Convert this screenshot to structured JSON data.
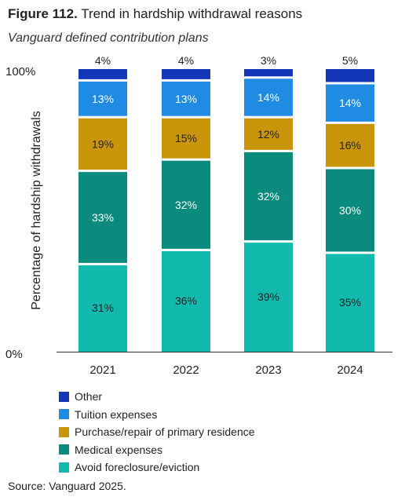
{
  "title": {
    "bold": "Figure 112.",
    "rest": " Trend in hardship withdrawal reasons"
  },
  "subtitle": "Vanguard defined contribution plans",
  "source": "Source: Vanguard 2025.",
  "chart_data": {
    "type": "bar",
    "stacked": true,
    "categories": [
      "2021",
      "2022",
      "2023",
      "2024"
    ],
    "ylabel": "Percentage of hardship withdrawals",
    "ylim": [
      0,
      100
    ],
    "y_tick_labels": [
      "0%",
      "100%"
    ],
    "series": [
      {
        "name": "Avoid foreclosure/eviction",
        "color": "#12b9ad",
        "label_color": "#222222",
        "values": [
          31,
          36,
          39,
          35
        ]
      },
      {
        "name": "Medical expenses",
        "color": "#0b8a7e",
        "label_color": "#ffffff",
        "values": [
          33,
          32,
          32,
          30
        ]
      },
      {
        "name": "Purchase/repair of primary residence",
        "color": "#c9950a",
        "label_color": "#222222",
        "values": [
          19,
          15,
          12,
          16
        ]
      },
      {
        "name": "Tuition expenses",
        "color": "#1f8be3",
        "label_color": "#ffffff",
        "values": [
          13,
          13,
          14,
          14
        ]
      },
      {
        "name": "Other",
        "color": "#1437b8",
        "label_color": "#222222",
        "values": [
          4,
          4,
          3,
          5
        ]
      }
    ],
    "legend_order": [
      "Other",
      "Tuition expenses",
      "Purchase/repair of primary residence",
      "Medical expenses",
      "Avoid foreclosure/eviction"
    ],
    "legend_position": "bottom",
    "grid": false
  }
}
